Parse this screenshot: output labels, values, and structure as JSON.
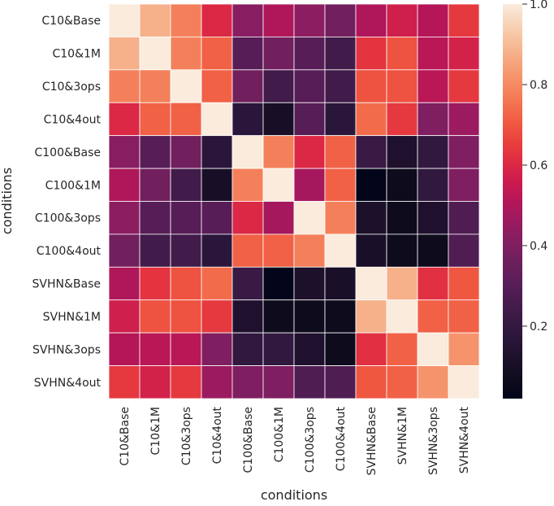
{
  "chart_data": {
    "type": "heatmap",
    "title": "",
    "xlabel": "conditions",
    "ylabel": "conditions",
    "x_categories": [
      "C10&Base",
      "C10&1M",
      "C10&3ops",
      "C10&4out",
      "C100&Base",
      "C100&1M",
      "C100&3ops",
      "C100&4out",
      "SVHN&Base",
      "SVHN&1M",
      "SVHN&3ops",
      "SVHN&4out"
    ],
    "y_categories": [
      "C10&Base",
      "C10&1M",
      "C10&3ops",
      "C10&4out",
      "C100&Base",
      "C100&1M",
      "C100&3ops",
      "C100&4out",
      "SVHN&Base",
      "SVHN&1M",
      "SVHN&3ops",
      "SVHN&4out"
    ],
    "values": [
      [
        1.0,
        0.88,
        0.78,
        0.6,
        0.42,
        0.5,
        0.43,
        0.37,
        0.5,
        0.57,
        0.51,
        0.64
      ],
      [
        0.88,
        1.0,
        0.78,
        0.72,
        0.3,
        0.37,
        0.3,
        0.24,
        0.63,
        0.69,
        0.52,
        0.58
      ],
      [
        0.78,
        0.78,
        1.0,
        0.72,
        0.37,
        0.24,
        0.3,
        0.24,
        0.69,
        0.69,
        0.52,
        0.64
      ],
      [
        0.6,
        0.72,
        0.72,
        1.0,
        0.17,
        0.1,
        0.3,
        0.17,
        0.74,
        0.64,
        0.4,
        0.46
      ],
      [
        0.42,
        0.3,
        0.37,
        0.17,
        1.0,
        0.78,
        0.6,
        0.72,
        0.22,
        0.13,
        0.19,
        0.4
      ],
      [
        0.5,
        0.37,
        0.24,
        0.1,
        0.78,
        1.0,
        0.48,
        0.72,
        0.02,
        0.06,
        0.19,
        0.4
      ],
      [
        0.43,
        0.3,
        0.3,
        0.3,
        0.6,
        0.48,
        1.0,
        0.78,
        0.12,
        0.06,
        0.13,
        0.28
      ],
      [
        0.37,
        0.24,
        0.24,
        0.17,
        0.72,
        0.72,
        0.78,
        1.0,
        0.11,
        0.06,
        0.06,
        0.28
      ],
      [
        0.5,
        0.63,
        0.69,
        0.74,
        0.22,
        0.02,
        0.12,
        0.11,
        1.0,
        0.88,
        0.62,
        0.7
      ],
      [
        0.57,
        0.69,
        0.69,
        0.64,
        0.13,
        0.06,
        0.06,
        0.06,
        0.88,
        1.0,
        0.72,
        0.72
      ],
      [
        0.51,
        0.52,
        0.52,
        0.4,
        0.19,
        0.19,
        0.13,
        0.06,
        0.62,
        0.72,
        1.0,
        0.82
      ],
      [
        0.64,
        0.58,
        0.64,
        0.46,
        0.4,
        0.4,
        0.28,
        0.28,
        0.7,
        0.72,
        0.82,
        1.0
      ]
    ],
    "colormap": "rocket",
    "vmin": 0.02,
    "vmax": 1.0,
    "colorbar": {
      "ticks": [
        0.2,
        0.4,
        0.6,
        0.8,
        1.0
      ],
      "tick_labels": [
        "0.2",
        "0.4",
        "0.6",
        "0.8",
        "1.0"
      ],
      "placement": "right"
    },
    "cell_border_color": "#ffffff",
    "grid": false
  }
}
